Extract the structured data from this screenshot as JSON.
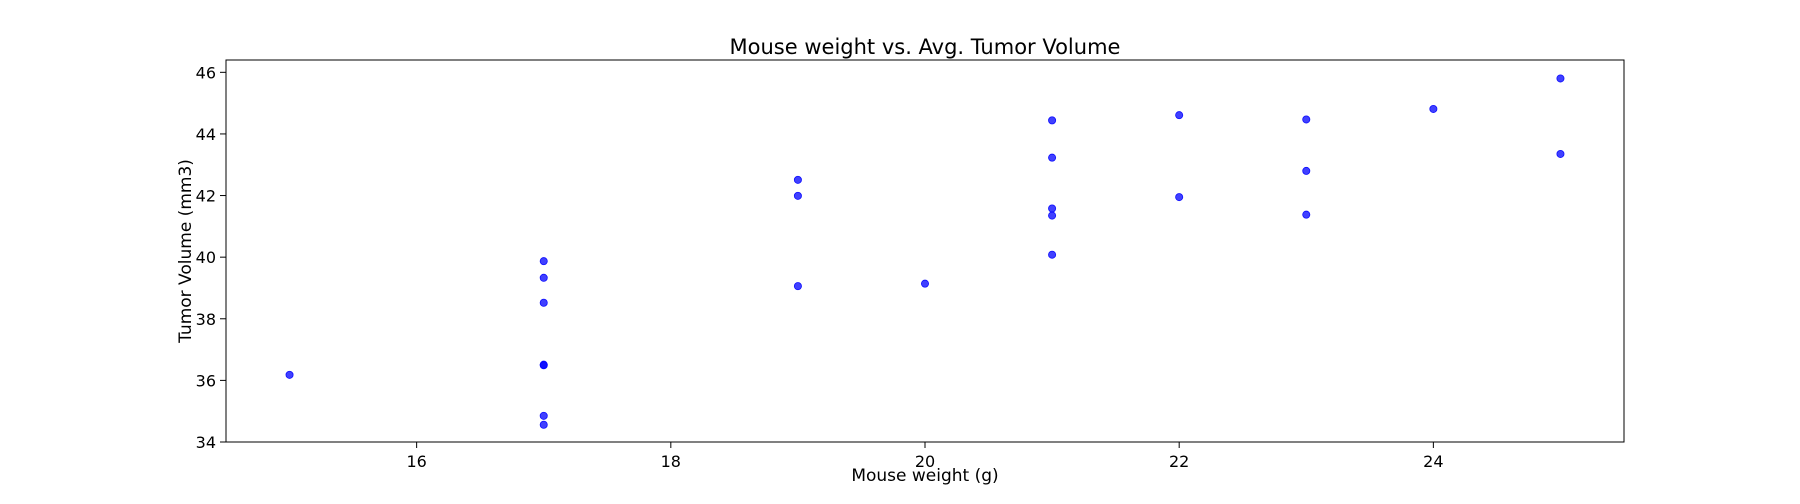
{
  "chart_data": {
    "type": "scatter",
    "title": "Mouse weight vs. Avg. Tumor Volume",
    "xlabel": "Mouse weight (g)",
    "ylabel": "Tumor Volume (mm3)",
    "xlim": [
      14.5,
      25.5
    ],
    "ylim": [
      34.0,
      46.4
    ],
    "xticks": [
      16,
      18,
      20,
      22,
      24
    ],
    "yticks": [
      34,
      36,
      38,
      40,
      42,
      44,
      46
    ],
    "grid": false,
    "legend": "none",
    "marker_color": "#0000ff",
    "points": [
      {
        "x": 15,
        "y": 36.18
      },
      {
        "x": 17,
        "y": 39.87
      },
      {
        "x": 17,
        "y": 39.33
      },
      {
        "x": 17,
        "y": 38.52
      },
      {
        "x": 17,
        "y": 36.51
      },
      {
        "x": 17,
        "y": 36.49
      },
      {
        "x": 17,
        "y": 34.85
      },
      {
        "x": 17,
        "y": 34.56
      },
      {
        "x": 19,
        "y": 42.51
      },
      {
        "x": 19,
        "y": 41.99
      },
      {
        "x": 19,
        "y": 39.06
      },
      {
        "x": 20,
        "y": 39.14
      },
      {
        "x": 21,
        "y": 44.44
      },
      {
        "x": 21,
        "y": 43.23
      },
      {
        "x": 21,
        "y": 41.58
      },
      {
        "x": 21,
        "y": 41.35
      },
      {
        "x": 21,
        "y": 40.08
      },
      {
        "x": 22,
        "y": 44.61
      },
      {
        "x": 22,
        "y": 41.95
      },
      {
        "x": 23,
        "y": 44.47
      },
      {
        "x": 23,
        "y": 42.8
      },
      {
        "x": 23,
        "y": 41.38
      },
      {
        "x": 24,
        "y": 44.81
      },
      {
        "x": 25,
        "y": 45.8
      },
      {
        "x": 25,
        "y": 43.35
      }
    ]
  }
}
